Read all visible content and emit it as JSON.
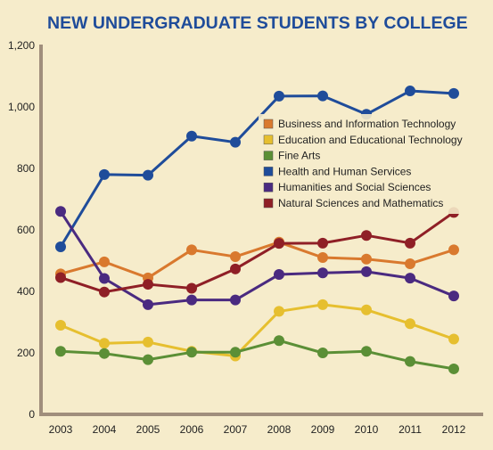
{
  "chart_data": {
    "type": "line",
    "title": "NEW UNDERGRADUATE STUDENTS BY COLLEGE",
    "xlabel": "",
    "ylabel": "",
    "x": [
      "2003",
      "2004",
      "2005",
      "2006",
      "2007",
      "2008",
      "2009",
      "2010",
      "2011",
      "2012"
    ],
    "ylim": [
      0,
      1200
    ],
    "yticks": [
      "0",
      "200",
      "400",
      "600",
      "800",
      "1,000",
      "1,200"
    ],
    "grid": false,
    "legend_position": "center-right",
    "series": [
      {
        "name": "Business and Information Technology",
        "color": "#d9792e",
        "values": [
          457,
          496,
          444,
          535,
          513,
          560,
          510,
          505,
          490,
          535
        ]
      },
      {
        "name": "Education and Educational Technology",
        "color": "#e6bf2f",
        "values": [
          290,
          231,
          235,
          205,
          190,
          335,
          357,
          340,
          295,
          245
        ]
      },
      {
        "name": "Fine Arts",
        "color": "#5b8f36",
        "values": [
          205,
          198,
          178,
          202,
          202,
          240,
          200,
          205,
          172,
          148
        ]
      },
      {
        "name": "Health and Human Services",
        "color": "#1f4c9a",
        "values": [
          545,
          780,
          778,
          905,
          885,
          1035,
          1036,
          976,
          1052,
          1044
        ]
      },
      {
        "name": "Humanities and Social Sciences",
        "color": "#4a2a80",
        "values": [
          660,
          442,
          357,
          372,
          372,
          455,
          460,
          464,
          443,
          385
        ]
      },
      {
        "name": "Natural Sciences and Mathematics",
        "color": "#8f1f26",
        "values": [
          445,
          398,
          423,
          410,
          473,
          556,
          557,
          582,
          557,
          657
        ]
      }
    ]
  }
}
